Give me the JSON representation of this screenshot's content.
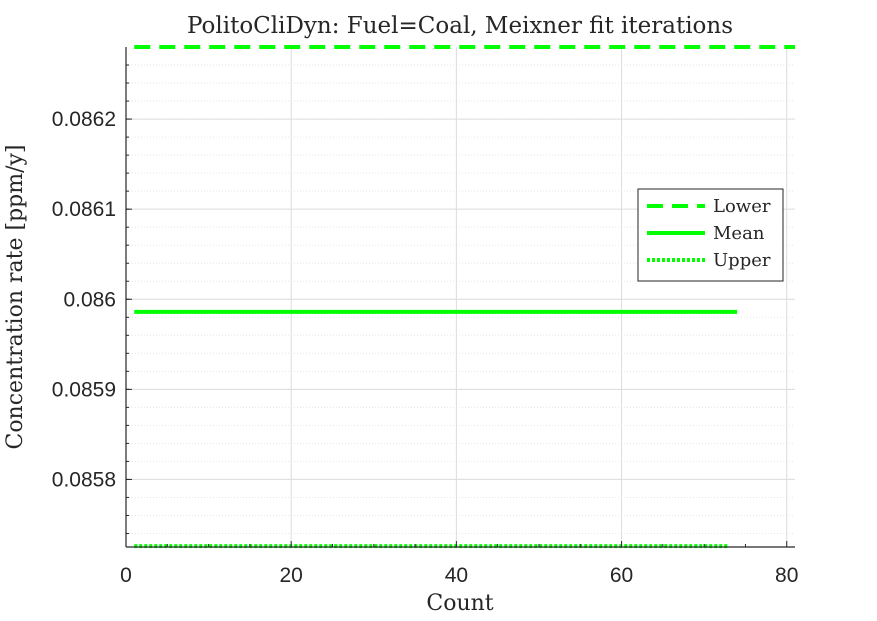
{
  "chart_data": {
    "type": "line",
    "title": "PolitoCliDyn: Fuel=Coal, Meixner fit iterations",
    "xlabel": "Count",
    "ylabel": "Concentration rate [ppm/y]",
    "xlim": [
      0,
      81
    ],
    "ylim": [
      0.085725,
      0.08628
    ],
    "x_ticks": [
      0,
      20,
      40,
      60,
      80
    ],
    "x_tick_labels": [
      "0",
      "20",
      "40",
      "60",
      "80"
    ],
    "y_ticks": [
      0.0858,
      0.0859,
      0.086,
      0.0861,
      0.0862
    ],
    "y_tick_labels": [
      "0.0858",
      "0.0859",
      "0.086",
      "0.0861",
      "0.0862"
    ],
    "grid": true,
    "minor_grid": true,
    "legend_position": "right",
    "series": [
      {
        "name": "Lower",
        "style": "dashed",
        "color": "#00ff00",
        "x": [
          1,
          81
        ],
        "y": [
          0.08628,
          0.08628
        ]
      },
      {
        "name": "Mean",
        "style": "solid",
        "color": "#00ff00",
        "x": [
          1,
          74
        ],
        "y": [
          0.085986,
          0.085986
        ]
      },
      {
        "name": "Upper",
        "style": "dotted",
        "color": "#00ff00",
        "x": [
          1,
          73
        ],
        "y": [
          0.085726,
          0.085726
        ]
      }
    ]
  }
}
